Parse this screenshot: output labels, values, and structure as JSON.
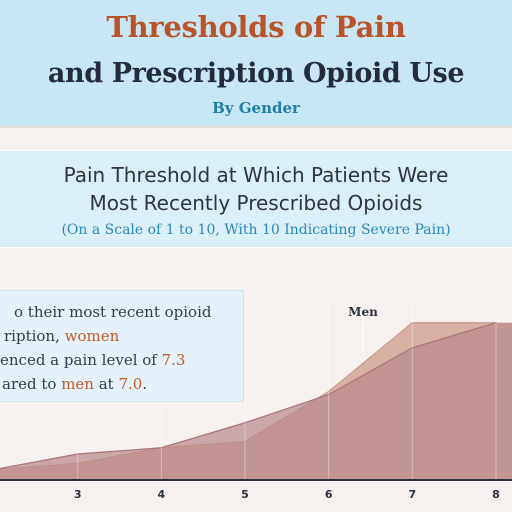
{
  "header": {
    "title_line1": "Thresholds of Pain",
    "title_line2": "and Prescription Opioid Use",
    "subtitle": "By Gender"
  },
  "section": {
    "title_line1": "Pain Threshold at Which Patients Were",
    "title_line2": "Most Recently Prescribed Opioids",
    "note": "(On a Scale of 1 to 10, With 10 Indicating Severe Pain)"
  },
  "callout": {
    "line1": "o their most recent opioid",
    "line2_a": "ription, ",
    "line2_b": "women",
    "line3_a": "enced a pain level of ",
    "line3_b": "7.3",
    "line4_a": "ared to ",
    "line4_b": "men",
    "line4_c": " at ",
    "line4_d": "7.0",
    "line4_e": "."
  },
  "colors": {
    "men_fill": "#d9b0a4",
    "women_fill": "#b98a8e",
    "accent_orange": "#c25a28",
    "title_orange": "#b9532a",
    "navy": "#242c3c",
    "blue": "#1f7fa7"
  },
  "chart_data": {
    "type": "area",
    "x": [
      2,
      3,
      4,
      5,
      6,
      7,
      8
    ],
    "xlim": [
      2,
      8
    ],
    "series": [
      {
        "name": "Men",
        "values": [
          0.3,
          0.5,
          1.0,
          1.2,
          2.8,
          5.0,
          5.0
        ]
      },
      {
        "values": [
          0.3,
          0.8,
          1.0,
          1.8,
          2.7,
          4.2,
          5.0
        ]
      }
    ],
    "x_tick_labels": [
      "3",
      "4",
      "5",
      "6",
      "7",
      "8"
    ],
    "ylim": [
      0,
      5.6
    ]
  }
}
